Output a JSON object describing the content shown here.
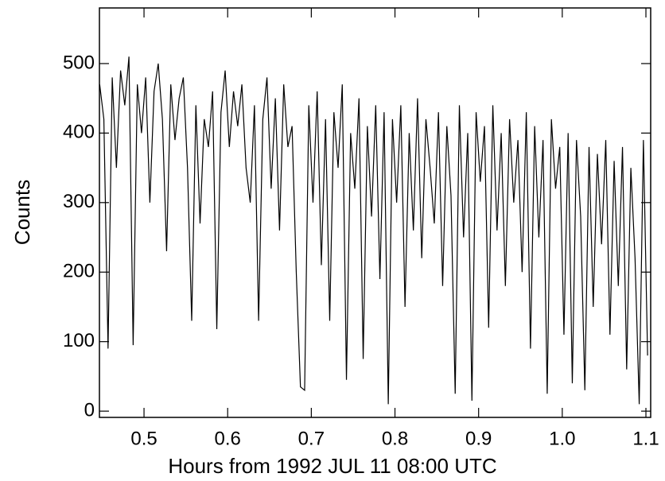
{
  "chart_data": {
    "type": "line",
    "x_label": "Hours from 1992 JUL 11 08:00 UTC",
    "y_label": "Counts",
    "xlim": [
      0.4467,
      1.1057
    ],
    "ylim": [
      -9,
      580
    ],
    "xticks": [
      0.5,
      0.6,
      0.7,
      0.8,
      0.9,
      {
        "value": 1.0,
        "label": "1.0"
      },
      1.1
    ],
    "yticks": [
      0,
      100,
      200,
      300,
      400,
      500
    ],
    "color": "#000000",
    "x": [
      0.447,
      0.452,
      0.457,
      0.462,
      0.467,
      0.472,
      0.477,
      0.482,
      0.487,
      0.492,
      0.497,
      0.502,
      0.507,
      0.512,
      0.517,
      0.522,
      0.527,
      0.532,
      0.537,
      0.542,
      0.547,
      0.552,
      0.557,
      0.562,
      0.567,
      0.572,
      0.577,
      0.582,
      0.587,
      0.592,
      0.597,
      0.602,
      0.607,
      0.612,
      0.617,
      0.622,
      0.627,
      0.632,
      0.637,
      0.642,
      0.647,
      0.652,
      0.657,
      0.662,
      0.667,
      0.672,
      0.677,
      0.682,
      0.687,
      0.692,
      0.697,
      0.702,
      0.707,
      0.712,
      0.717,
      0.722,
      0.727,
      0.732,
      0.737,
      0.742,
      0.747,
      0.752,
      0.757,
      0.762,
      0.767,
      0.772,
      0.777,
      0.782,
      0.787,
      0.792,
      0.797,
      0.802,
      0.807,
      0.812,
      0.817,
      0.822,
      0.827,
      0.832,
      0.837,
      0.842,
      0.847,
      0.852,
      0.857,
      0.862,
      0.867,
      0.872,
      0.877,
      0.882,
      0.887,
      0.892,
      0.897,
      0.902,
      0.907,
      0.912,
      0.917,
      0.922,
      0.927,
      0.932,
      0.937,
      0.942,
      0.947,
      0.952,
      0.957,
      0.962,
      0.967,
      0.972,
      0.977,
      0.982,
      0.987,
      0.992,
      0.997,
      1.002,
      1.007,
      1.012,
      1.017,
      1.022,
      1.027,
      1.032,
      1.037,
      1.042,
      1.047,
      1.052,
      1.057,
      1.062,
      1.067,
      1.072,
      1.077,
      1.082,
      1.087,
      1.092,
      1.097,
      1.102
    ],
    "values": [
      470,
      420,
      90,
      480,
      350,
      490,
      440,
      510,
      95,
      470,
      400,
      480,
      300,
      460,
      500,
      420,
      230,
      470,
      390,
      450,
      480,
      350,
      130,
      440,
      270,
      420,
      380,
      460,
      118,
      430,
      490,
      380,
      460,
      410,
      470,
      350,
      300,
      440,
      130,
      420,
      480,
      320,
      450,
      260,
      470,
      380,
      410,
      200,
      35,
      30,
      440,
      300,
      460,
      210,
      420,
      130,
      430,
      350,
      470,
      45,
      400,
      320,
      450,
      75,
      410,
      280,
      440,
      190,
      430,
      10,
      420,
      300,
      440,
      150,
      400,
      260,
      450,
      220,
      420,
      350,
      270,
      430,
      180,
      410,
      310,
      25,
      440,
      250,
      400,
      15,
      430,
      330,
      410,
      120,
      440,
      260,
      400,
      180,
      420,
      300,
      390,
      200,
      430,
      90,
      410,
      250,
      390,
      25,
      420,
      320,
      380,
      110,
      400,
      40,
      390,
      280,
      30,
      380,
      150,
      370,
      240,
      390,
      110,
      360,
      180,
      380,
      60,
      350,
      220,
      10,
      390,
      80
    ]
  }
}
